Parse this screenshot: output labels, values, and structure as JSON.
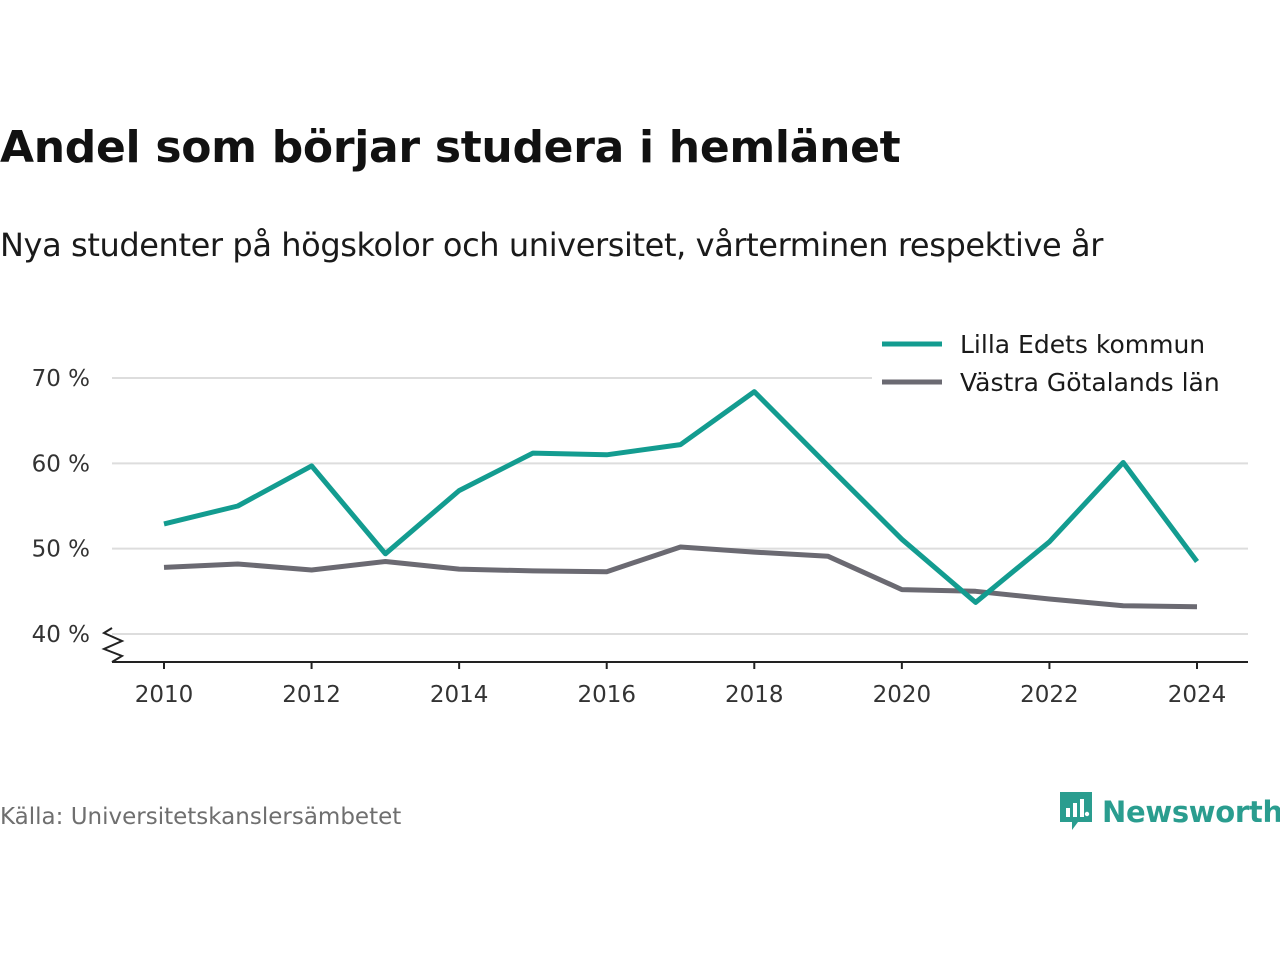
{
  "title": "Andel som börjar studera i hemlänet",
  "subtitle": "Nya studenter på högskolor och universitet, vårterminen respektive år",
  "source": "Källa: Universitetskanslersämbetet",
  "brand": "Newsworthy",
  "colors": {
    "brand": "#2a9d8f",
    "grid": "#dddddd",
    "axis": "#222222"
  },
  "chart_data": {
    "type": "line",
    "title": "Andel som börjar studera i hemlänet",
    "subtitle": "Nya studenter på högskolor och universitet, vårterminen respektive år",
    "xlabel": "",
    "ylabel": "",
    "x": [
      2010,
      2011,
      2012,
      2013,
      2014,
      2015,
      2016,
      2017,
      2018,
      2019,
      2020,
      2021,
      2022,
      2023,
      2024
    ],
    "x_ticks": [
      "2010",
      "2012",
      "2014",
      "2016",
      "2018",
      "2020",
      "2022",
      "2024"
    ],
    "y_ticks": [
      "40 %",
      "50 %",
      "60 %",
      "70 %"
    ],
    "xlim": [
      2010,
      2024
    ],
    "ylim": [
      40,
      70
    ],
    "y_axis_break": true,
    "grid": "horizontal",
    "legend_position": "top-right",
    "series": [
      {
        "name": "Lilla Edets kommun",
        "color": "#139c90",
        "values": [
          52.9,
          55.0,
          59.7,
          49.4,
          56.8,
          61.2,
          61.0,
          62.2,
          68.4,
          59.7,
          51.1,
          43.7,
          50.8,
          60.1,
          48.5
        ]
      },
      {
        "name": "Västra Götalands län",
        "color": "#6b6a72",
        "values": [
          47.8,
          48.2,
          47.5,
          48.5,
          47.6,
          47.4,
          47.3,
          50.2,
          49.6,
          49.1,
          45.2,
          45.0,
          44.1,
          43.3,
          43.2
        ]
      }
    ]
  }
}
